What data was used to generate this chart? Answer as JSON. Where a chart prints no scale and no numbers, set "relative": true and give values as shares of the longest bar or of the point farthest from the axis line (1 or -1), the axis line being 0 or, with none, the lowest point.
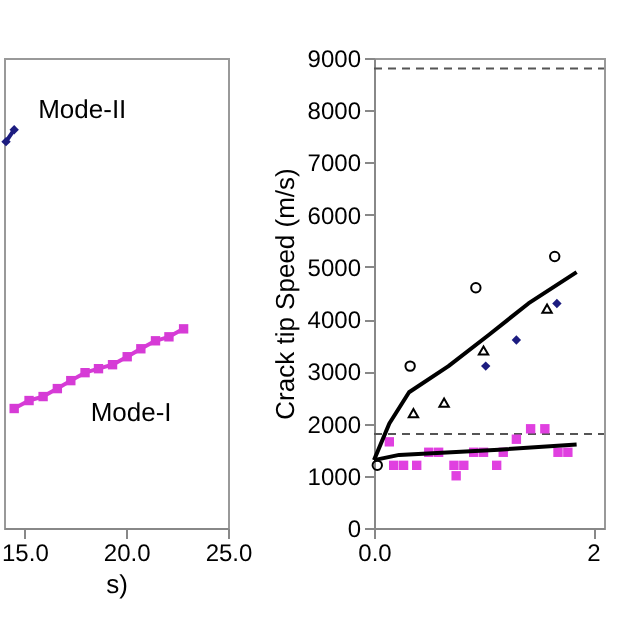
{
  "chart_data": [
    {
      "type": "line",
      "relative": true,
      "xlabel": "s)",
      "xlim": [
        14.0,
        25.0
      ],
      "xticks": [
        {
          "value": 15,
          "label": "15.0"
        },
        {
          "value": 20,
          "label": "20.0"
        },
        {
          "value": 25,
          "label": "25.0"
        }
      ],
      "tick_labels": "x",
      "grid": false,
      "series": [
        {
          "name": "Mode-II",
          "color": "#1c1c80",
          "marker": "diamond",
          "x": [
            14.1,
            14.5
          ],
          "values": [
            0.97,
            1.0
          ]
        },
        {
          "name": "Mode-I",
          "color": "#d63bd6",
          "marker": "square",
          "x": [
            14.5,
            15.23,
            15.92,
            16.62,
            17.28,
            17.98,
            18.64,
            19.33,
            20.05,
            20.72,
            21.44,
            22.1,
            22.82
          ],
          "values": [
            0.3,
            0.32,
            0.33,
            0.35,
            0.37,
            0.39,
            0.4,
            0.41,
            0.43,
            0.45,
            0.47,
            0.48,
            0.5
          ]
        }
      ]
    },
    {
      "type": "scatter",
      "ylabel": "Crack tip Speed (m/s)",
      "xlim": [
        0.0,
        2.1
      ],
      "xticks": [
        {
          "value": 0,
          "label": "0.0"
        },
        {
          "value": 2,
          "label": "2"
        }
      ],
      "ylim": [
        0,
        9000
      ],
      "yticks": [
        0,
        1000,
        2000,
        3000,
        4000,
        5000,
        6000,
        7000,
        8000,
        9000
      ],
      "grid": false,
      "ref_lines": [
        {
          "axis": "y",
          "value": 8800,
          "color": "#555555",
          "line_style": "dashed"
        },
        {
          "axis": "y",
          "value": 1800,
          "color": "#555555",
          "line_style": "dashed"
        }
      ],
      "series": [
        {
          "color": "#000000",
          "marker": "circle",
          "x": [
            0.03,
            0.33,
            0.93,
            1.65
          ],
          "values": [
            1200,
            3100,
            4600,
            5200
          ]
        },
        {
          "color": "#000000",
          "marker": "triangle",
          "x": [
            0.36,
            0.64,
            1.0,
            1.58
          ],
          "values": [
            2200,
            2400,
            3400,
            4200
          ]
        },
        {
          "color": "#1c1c80",
          "marker": "diamond",
          "x": [
            1.02,
            1.3,
            1.67
          ],
          "values": [
            3100,
            3600,
            4300
          ]
        },
        {
          "color": "#e040e0",
          "marker": "square",
          "x": [
            0.14,
            0.18,
            0.27,
            0.39,
            0.5,
            0.59,
            0.73,
            0.75,
            0.82,
            0.91,
            1.0,
            1.12,
            1.18,
            1.3,
            1.43,
            1.56,
            1.68,
            1.77
          ],
          "values": [
            1650,
            1200,
            1200,
            1200,
            1450,
            1450,
            1200,
            1000,
            1200,
            1450,
            1450,
            1200,
            1450,
            1700,
            1900,
            1900,
            1450,
            1450
          ]
        },
        {
          "type": "line",
          "color": "#000000",
          "marker": "none",
          "x": [
            0,
            0.14,
            0.32,
            0.68,
            1.05,
            1.41,
            1.85
          ],
          "values": [
            1300,
            2000,
            2600,
            3100,
            3700,
            4300,
            4900
          ]
        },
        {
          "type": "line",
          "color": "#000000",
          "marker": "none",
          "x": [
            0,
            0.23,
            1.14,
            1.85
          ],
          "values": [
            1300,
            1400,
            1500,
            1600
          ]
        }
      ]
    }
  ]
}
